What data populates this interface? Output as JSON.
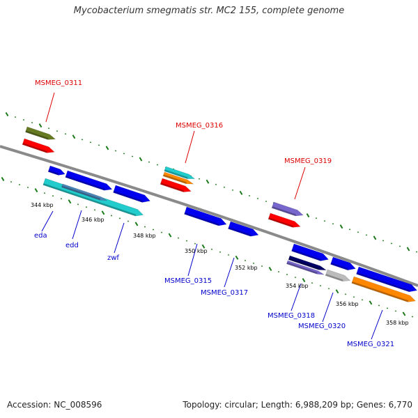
{
  "title": "Mycobacterium smegmatis str. MC2 155, complete genome",
  "footer": {
    "accession": "Accession: NC_008596",
    "summary": "Topology: circular; Length: 6,988,209 bp; Genes: 6,770"
  },
  "colors": {
    "backbone": "#8a8a8a",
    "strand_dots": "#1a7a1a",
    "label_top": "#dd0000",
    "label_bottom": "#0000cc",
    "gene_blue": "#0000ee",
    "gene_red": "#ff0000",
    "gene_cyan": "#22cccc",
    "gene_orange": "#ff8800",
    "gene_olive": "#667a22",
    "gene_purple": "#7766cc",
    "gene_navy": "#000066",
    "gene_gray": "#bbbbbb",
    "gene_steel": "#4a86b8"
  },
  "tick_labels": [
    "344 kbp",
    "346 kbp",
    "348 kbp",
    "350 kbp",
    "352 kbp",
    "354 kbp",
    "356 kbp",
    "358 kbp"
  ],
  "top_labels": [
    "MSMEG_0311",
    "MSMEG_0316",
    "MSMEG_0319"
  ],
  "bottom_labels": [
    "eda",
    "edd",
    "zwf",
    "MSMEG_0315",
    "MSMEG_0317",
    "MSMEG_0318",
    "MSMEG_0320",
    "MSMEG_0321"
  ]
}
